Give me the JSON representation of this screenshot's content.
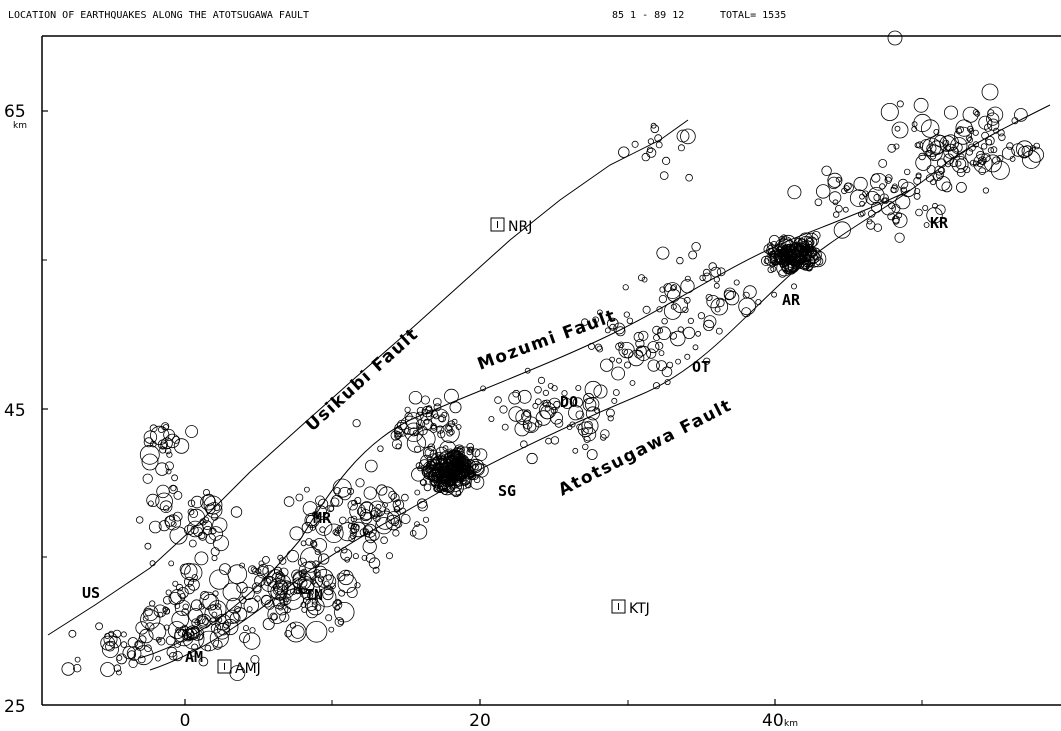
{
  "header": {
    "title": "LOCATION OF EARTHQUAKES ALONG THE ATOTSUGAWA FAULT",
    "period": "85  1 - 89  12",
    "total": "TOTAL= 1535"
  },
  "axes": {
    "x_ticks": [
      "0",
      "20",
      "40"
    ],
    "y_ticks": [
      "25",
      "45",
      "65"
    ],
    "x_unit": "km",
    "y_unit": "km"
  },
  "faults": [
    {
      "id": "usikubi",
      "label": "Usikubi Fault"
    },
    {
      "id": "mozumi",
      "label": "Mozumi Fault"
    },
    {
      "id": "atotsugawa",
      "label": "Atotsugawa Fault"
    }
  ],
  "sites": [
    "US",
    "MR",
    "TN",
    "AM",
    "SG",
    "DO",
    "OT",
    "AR",
    "KR"
  ],
  "stations": [
    "NRJ",
    "KTJ",
    "AMJ"
  ],
  "colors": {
    "ink": "#000000",
    "paper": "#ffffff"
  }
}
